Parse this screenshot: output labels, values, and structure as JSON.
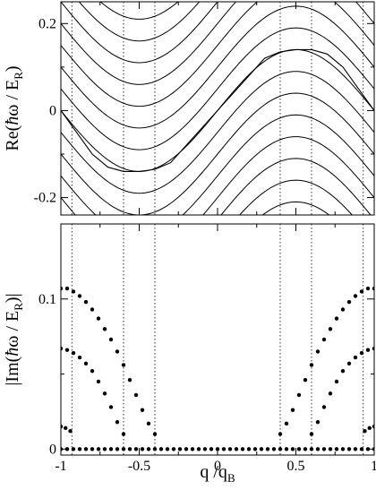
{
  "chart_data": [
    {
      "type": "line",
      "ylabel": {
        "pre": "Re(",
        "hbar": "ħ",
        "omega": "ω / E",
        "sub": "R",
        "post": ")"
      },
      "xlim": [
        -1,
        1
      ],
      "ylim": [
        -0.24,
        0.25
      ],
      "yticks": [
        -0.2,
        0,
        0.2
      ],
      "ytick_labels": [
        "-0.2",
        "0",
        "0.2"
      ],
      "xticks": [
        -1,
        -0.5,
        0,
        0.5,
        1
      ],
      "band_offsets": [
        -0.4,
        -0.35,
        -0.3,
        -0.25,
        -0.2,
        -0.15,
        -0.1,
        -0.05,
        0.05,
        0.1,
        0.15,
        0.2,
        0.25,
        0.3,
        0.35,
        0.4
      ],
      "sine_amplitude": 0.14,
      "special_branch": {
        "x": [
          -1,
          -0.9,
          -0.8,
          -0.7,
          -0.6,
          -0.5,
          -0.4,
          -0.3,
          -0.2,
          -0.1,
          0,
          0.1,
          0.2,
          0.3,
          0.4,
          0.5,
          0.6,
          0.7,
          0.8,
          0.9,
          1
        ],
        "y": [
          0,
          -0.05,
          -0.1,
          -0.13,
          -0.14,
          -0.14,
          -0.135,
          -0.12,
          -0.08,
          -0.04,
          0,
          0.04,
          0.08,
          0.12,
          0.135,
          0.14,
          0.14,
          0.13,
          0.1,
          0.05,
          0
        ]
      },
      "guide_lines_x": [
        -0.93,
        -0.6,
        -0.4,
        0.4,
        0.6,
        0.93
      ]
    },
    {
      "type": "scatter",
      "ylabel": {
        "pre": "|Im(",
        "hbar": "ħ",
        "omega": "ω / E",
        "sub": "R",
        "post": ")|"
      },
      "xlabel": {
        "main": "q /q",
        "sub": "B"
      },
      "xlim": [
        -1,
        1
      ],
      "ylim": [
        -0.004,
        0.15
      ],
      "yticks": [
        0,
        0.1
      ],
      "ytick_labels": [
        "0",
        "0.1"
      ],
      "xticks": [
        -1,
        -0.5,
        0,
        0.5,
        1
      ],
      "xtick_labels": [
        "-1",
        "-0.5",
        "0",
        "0.5",
        "1"
      ],
      "series": [
        {
          "x": [
            -1,
            -0.97,
            -0.94
          ],
          "y": [
            0.015,
            0.014,
            0.012
          ]
        },
        {
          "x": [
            -1,
            -0.96,
            -0.92,
            -0.88,
            -0.84,
            -0.8,
            -0.76,
            -0.72,
            -0.68,
            -0.64,
            -0.6
          ],
          "y": [
            0.067,
            0.066,
            0.064,
            0.061,
            0.057,
            0.052,
            0.045,
            0.037,
            0.028,
            0.018,
            0.01
          ]
        },
        {
          "x": [
            -1,
            -0.96,
            -0.92,
            -0.88,
            -0.84,
            -0.8,
            -0.76,
            -0.72,
            -0.68,
            -0.64,
            -0.6,
            -0.56,
            -0.52,
            -0.48,
            -0.44,
            -0.4
          ],
          "y": [
            0.107,
            0.107,
            0.105,
            0.102,
            0.098,
            0.093,
            0.087,
            0.08,
            0.073,
            0.065,
            0.056,
            0.046,
            0.036,
            0.026,
            0.017,
            0.01
          ]
        },
        {
          "x": [
            1,
            0.97,
            0.94
          ],
          "y": [
            0.015,
            0.014,
            0.012
          ]
        },
        {
          "x": [
            1,
            0.96,
            0.92,
            0.88,
            0.84,
            0.8,
            0.76,
            0.72,
            0.68,
            0.64,
            0.6
          ],
          "y": [
            0.067,
            0.066,
            0.064,
            0.061,
            0.057,
            0.052,
            0.045,
            0.037,
            0.028,
            0.018,
            0.01
          ]
        },
        {
          "x": [
            1,
            0.96,
            0.92,
            0.88,
            0.84,
            0.8,
            0.76,
            0.72,
            0.68,
            0.64,
            0.6,
            0.56,
            0.52,
            0.48,
            0.44,
            0.4
          ],
          "y": [
            0.107,
            0.107,
            0.105,
            0.102,
            0.098,
            0.093,
            0.087,
            0.08,
            0.073,
            0.065,
            0.056,
            0.046,
            0.036,
            0.026,
            0.017,
            0.01
          ]
        }
      ],
      "baseline": {
        "y": 0,
        "x_start": -1,
        "x_end": 1,
        "count": 51
      },
      "guide_lines_x": [
        -0.93,
        -0.6,
        -0.4,
        0.4,
        0.6,
        0.93
      ]
    }
  ]
}
